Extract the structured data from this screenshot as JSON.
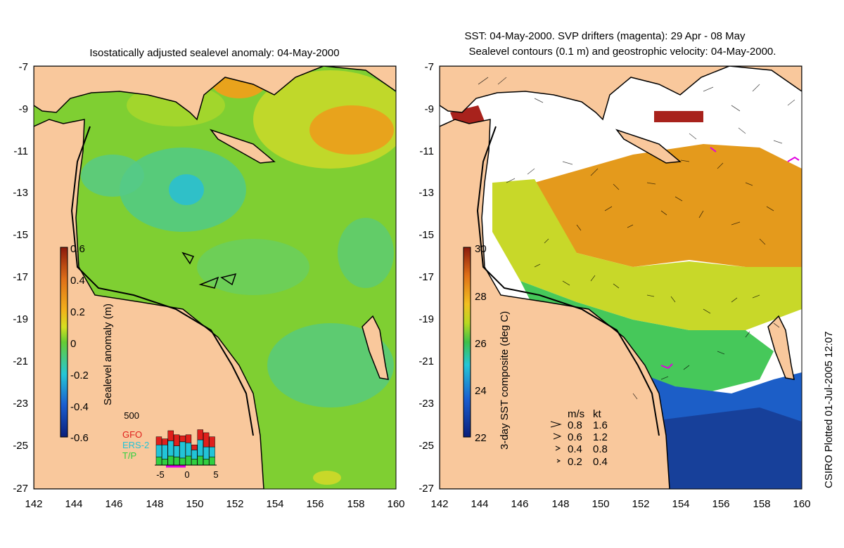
{
  "colors": {
    "land": "#f9c89c",
    "ocean_base": "#7fcf32",
    "ocean_blue": "#3fc9a0",
    "warm": "#e49a1c",
    "hot": "#e07a12",
    "deep_blue": "#1c5ec7",
    "gfo": "#e0201c",
    "ers2": "#22c4d8",
    "tp": "#30d040",
    "magenta": "#e000e0",
    "coast": "#000000",
    "white": "#ffffff"
  },
  "left_panel": {
    "title": "Isostatically adjusted sealevel anomaly: 04-May-2000",
    "colorbar": {
      "label": "Sealevel anomaly (m)",
      "ticks": [
        "0.6",
        "0.4",
        "0.2",
        "0",
        "-0.2",
        "-0.4",
        "-0.6"
      ]
    },
    "inset": {
      "ymax_label": "500",
      "legend": [
        {
          "name": "GFO",
          "color": "#e0201c"
        },
        {
          "name": "ERS-2",
          "color": "#22c4d8"
        },
        {
          "name": "T/P",
          "color": "#30d040"
        }
      ],
      "x_ticks": [
        "-5",
        "0",
        "5"
      ],
      "chart_data": {
        "type": "bar",
        "ylim": [
          0,
          500
        ],
        "x": [
          -5,
          -4,
          -3,
          -2,
          -1,
          0,
          1,
          2,
          3,
          4
        ],
        "series": [
          {
            "name": "T/P",
            "values": [
              80,
              60,
              90,
              80,
              70,
              90,
              60,
              90,
              60,
              80
            ]
          },
          {
            "name": "ERS-2",
            "values": [
              120,
              140,
              150,
              110,
              160,
              130,
              90,
              160,
              120,
              100
            ]
          },
          {
            "name": "GFO",
            "values": [
              80,
              60,
              100,
              110,
              60,
              80,
              50,
              100,
              140,
              100
            ]
          }
        ]
      }
    }
  },
  "right_panel": {
    "title_line1": "SST: 04-May-2000. SVP drifters (magenta): 29 Apr - 08 May",
    "title_line2": "Sealevel contours (0.1 m) and geostrophic velocity: 04-May-2000.",
    "colorbar": {
      "label": "3-day SST composite (deg C)",
      "ticks": [
        "30",
        "28",
        "26",
        "24",
        "22"
      ]
    },
    "speed_key": {
      "header_ms": "m/s",
      "header_kt": "kt",
      "rows": [
        {
          "ms": "0.8",
          "kt": "1.6"
        },
        {
          "ms": "0.6",
          "kt": "1.2"
        },
        {
          "ms": "0.4",
          "kt": "0.8"
        },
        {
          "ms": "0.2",
          "kt": "0.4"
        }
      ]
    }
  },
  "axes": {
    "y_ticks": [
      "-7",
      "-9",
      "-11",
      "-13",
      "-15",
      "-17",
      "-19",
      "-21",
      "-23",
      "-25",
      "-27"
    ],
    "x_ticks": [
      "142",
      "144",
      "146",
      "148",
      "150",
      "152",
      "154",
      "156",
      "158",
      "160"
    ]
  },
  "credit": "CSIRO Plotted 01-Jul-2005 12:07"
}
